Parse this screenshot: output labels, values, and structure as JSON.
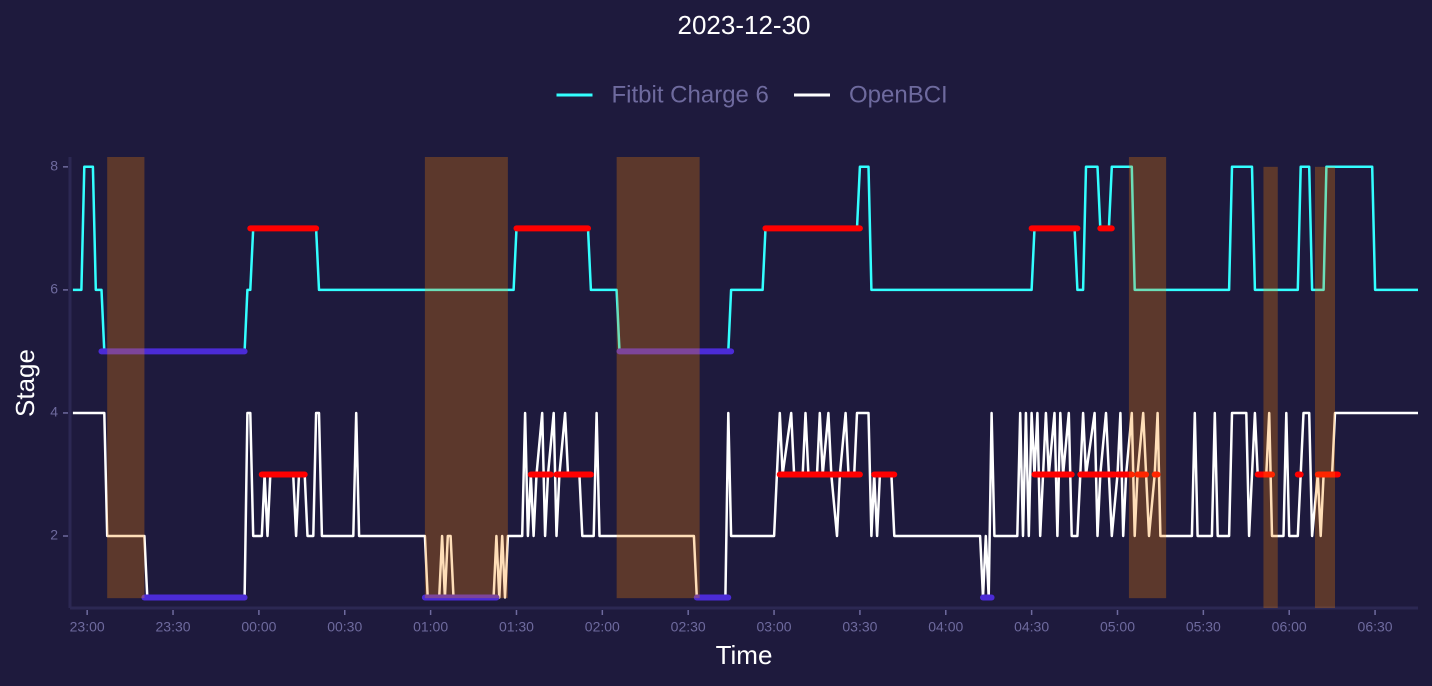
{
  "chart_data": {
    "type": "line",
    "title": "2023-12-30",
    "xlabel": "Time",
    "ylabel": "Stage",
    "legend": "top",
    "xlim": [
      "22:54",
      "06:45"
    ],
    "xticks": [
      "23:00",
      "23:30",
      "00:00",
      "00:30",
      "01:00",
      "01:30",
      "02:00",
      "02:30",
      "03:00",
      "03:30",
      "04:00",
      "04:30",
      "05:00",
      "05:30",
      "06:00",
      "06:30"
    ],
    "ylim": [
      0.83,
      8.16
    ],
    "yticks": [
      2,
      4,
      6,
      8
    ],
    "series": [
      {
        "name": "Fitbit Charge 6",
        "color": "#33ffff",
        "x": [
          "22:55",
          "22:58",
          "22:59",
          "23:02",
          "23:03",
          "23:05",
          "23:06",
          "23:55",
          "23:56",
          "23:57",
          "23:58",
          "00:20",
          "00:21",
          "01:29",
          "01:30",
          "01:55",
          "01:56",
          "02:05",
          "02:06",
          "02:44",
          "02:45",
          "02:56",
          "02:57",
          "03:29",
          "03:30",
          "03:33",
          "03:34",
          "04:30",
          "04:31",
          "04:45",
          "04:46",
          "04:48",
          "04:49",
          "04:53",
          "04:54",
          "04:57",
          "04:58",
          "05:05",
          "05:06",
          "05:39",
          "05:40",
          "05:47",
          "05:48",
          "06:03",
          "06:04",
          "06:07",
          "06:08",
          "06:12",
          "06:13",
          "06:29",
          "06:30",
          "06:45"
        ],
        "values": [
          6,
          6,
          8,
          8,
          6,
          6,
          5,
          5,
          6,
          6,
          7,
          7,
          6,
          6,
          7,
          7,
          6,
          6,
          5,
          5,
          6,
          6,
          7,
          7,
          8,
          8,
          6,
          6,
          7,
          7,
          6,
          6,
          8,
          8,
          7,
          7,
          8,
          8,
          6,
          6,
          8,
          8,
          6,
          6,
          8,
          8,
          6,
          6,
          8,
          8,
          6,
          6
        ]
      },
      {
        "name": "OpenBCI",
        "color": "#ffffff",
        "x": [
          "22:55",
          "23:06",
          "23:07",
          "23:20",
          "23:21",
          "23:55",
          "23:56",
          "23:57",
          "23:58",
          "00:01",
          "00:02",
          "00:03",
          "00:04",
          "00:12",
          "00:13",
          "00:14",
          "00:16",
          "00:17",
          "00:19",
          "00:20",
          "00:21",
          "00:22",
          "00:33",
          "00:34",
          "00:35",
          "00:58",
          "00:59",
          "01:03",
          "01:04",
          "01:05",
          "01:06",
          "01:07",
          "01:08",
          "01:22",
          "01:23",
          "01:24",
          "01:25",
          "01:26",
          "01:27",
          "01:32",
          "01:33",
          "01:34",
          "01:35",
          "01:36",
          "01:37",
          "01:39",
          "01:40",
          "01:41",
          "01:43",
          "01:44",
          "01:45",
          "01:47",
          "01:48",
          "01:52",
          "01:53",
          "01:57",
          "01:58",
          "01:59",
          "02:32",
          "02:33",
          "02:43",
          "02:44",
          "02:45",
          "03:00",
          "03:01",
          "03:02",
          "03:03",
          "03:06",
          "03:07",
          "03:10",
          "03:11",
          "03:12",
          "03:15",
          "03:16",
          "03:17",
          "03:19",
          "03:20",
          "03:22",
          "03:23",
          "03:25",
          "03:26",
          "03:28",
          "03:29",
          "03:33",
          "03:34",
          "03:35",
          "03:36",
          "03:37",
          "03:41",
          "03:42",
          "04:12",
          "04:13",
          "04:14",
          "04:15",
          "04:16",
          "04:17",
          "04:25",
          "04:26",
          "04:27",
          "04:28",
          "04:29",
          "04:30",
          "04:31",
          "04:32",
          "04:33",
          "04:35",
          "04:36",
          "04:38",
          "04:39",
          "04:40",
          "04:41",
          "04:43",
          "04:44",
          "04:46",
          "04:47",
          "04:48",
          "04:49",
          "04:52",
          "04:53",
          "04:54",
          "04:56",
          "04:57",
          "04:58",
          "05:00",
          "05:01",
          "05:02",
          "05:03",
          "05:05",
          "05:06",
          "05:07",
          "05:09",
          "05:10",
          "05:11",
          "05:13",
          "05:14",
          "05:15",
          "05:26",
          "05:27",
          "05:28",
          "05:33",
          "05:34",
          "05:35",
          "05:39",
          "05:40",
          "05:45",
          "05:46",
          "05:48",
          "05:49",
          "05:52",
          "05:53",
          "05:54",
          "05:58",
          "05:59",
          "06:00",
          "06:03",
          "06:04",
          "06:05",
          "06:07",
          "06:08",
          "06:10",
          "06:11",
          "06:12",
          "06:15",
          "06:16",
          "06:45"
        ],
        "values": [
          4,
          4,
          2,
          2,
          1,
          1,
          4,
          4,
          2,
          2,
          3,
          2,
          3,
          3,
          2,
          3,
          3,
          2,
          2,
          4,
          4,
          2,
          2,
          4,
          2,
          2,
          1,
          1,
          2,
          1,
          2,
          2,
          1,
          1,
          2,
          1,
          2,
          1,
          2,
          2,
          4,
          2,
          3,
          2,
          3,
          4,
          2,
          3,
          4,
          2,
          3,
          4,
          3,
          3,
          2,
          2,
          4,
          2,
          2,
          1,
          1,
          4,
          2,
          2,
          3,
          4,
          3,
          4,
          3,
          3,
          4,
          3,
          3,
          4,
          3,
          4,
          3,
          2,
          3,
          4,
          3,
          3,
          4,
          4,
          2,
          3,
          2,
          3,
          3,
          2,
          2,
          1,
          2,
          1,
          4,
          2,
          2,
          4,
          2,
          4,
          2,
          4,
          3,
          4,
          2,
          4,
          3,
          4,
          2,
          4,
          3,
          4,
          2,
          2,
          3,
          4,
          3,
          4,
          2,
          3,
          4,
          3,
          2,
          3,
          4,
          2,
          3,
          4,
          2,
          3,
          4,
          3,
          2,
          3,
          4,
          2,
          2,
          4,
          2,
          2,
          4,
          2,
          2,
          4,
          4,
          2,
          4,
          3,
          3,
          4,
          2,
          2,
          4,
          2,
          2,
          3,
          4,
          4,
          2,
          3,
          2,
          3,
          3,
          4,
          4
        ]
      }
    ],
    "highlights": [
      {
        "color": "#ff0000",
        "segments": [
          {
            "start": "23:57",
            "end": "00:20",
            "value": 7
          },
          {
            "start": "01:30",
            "end": "01:55",
            "value": 7
          },
          {
            "start": "02:57",
            "end": "03:30",
            "value": 7
          },
          {
            "start": "04:30",
            "end": "04:46",
            "value": 7
          },
          {
            "start": "04:54",
            "end": "04:58",
            "value": 7
          },
          {
            "start": "00:01",
            "end": "00:16",
            "value": 3
          },
          {
            "start": "01:35",
            "end": "01:42",
            "value": 3
          },
          {
            "start": "01:44",
            "end": "01:56",
            "value": 3
          },
          {
            "start": "03:02",
            "end": "03:23",
            "value": 3
          },
          {
            "start": "03:24",
            "end": "03:30",
            "value": 3
          },
          {
            "start": "03:35",
            "end": "03:42",
            "value": 3
          },
          {
            "start": "04:31",
            "end": "04:44",
            "value": 3
          },
          {
            "start": "04:47",
            "end": "04:59",
            "value": 3
          },
          {
            "start": "05:00",
            "end": "05:05",
            "value": 3
          },
          {
            "start": "05:07",
            "end": "05:10",
            "value": 3
          },
          {
            "start": "05:13",
            "end": "05:14",
            "value": 3
          },
          {
            "start": "05:49",
            "end": "05:54",
            "value": 3
          },
          {
            "start": "06:03",
            "end": "06:04",
            "value": 3
          },
          {
            "start": "06:10",
            "end": "06:17",
            "value": 3
          }
        ]
      },
      {
        "color": "#4b2bd6",
        "segments": [
          {
            "start": "23:05",
            "end": "23:55",
            "value": 5
          },
          {
            "start": "02:06",
            "end": "02:45",
            "value": 5
          },
          {
            "start": "23:20",
            "end": "23:55",
            "value": 1
          },
          {
            "start": "00:58",
            "end": "01:23",
            "value": 1
          },
          {
            "start": "02:33",
            "end": "02:44",
            "value": 1
          },
          {
            "start": "04:13",
            "end": "04:16",
            "value": 1
          }
        ]
      }
    ],
    "span_color": "#ff8700",
    "spans": [
      {
        "start": "23:07",
        "end": "23:20",
        "ymin": 0.99,
        "ymax": 8.16
      },
      {
        "start": "00:58",
        "end": "01:27",
        "ymin": 0.99,
        "ymax": 8.16
      },
      {
        "start": "02:05",
        "end": "02:34",
        "ymin": 0.99,
        "ymax": 8.16
      },
      {
        "start": "05:04",
        "end": "05:17",
        "ymin": 0.99,
        "ymax": 8.16
      },
      {
        "start": "05:51",
        "end": "05:56",
        "ymin": 0.83,
        "ymax": 8.0
      },
      {
        "start": "06:09",
        "end": "06:16",
        "ymin": 0.83,
        "ymax": 8.0
      }
    ]
  }
}
